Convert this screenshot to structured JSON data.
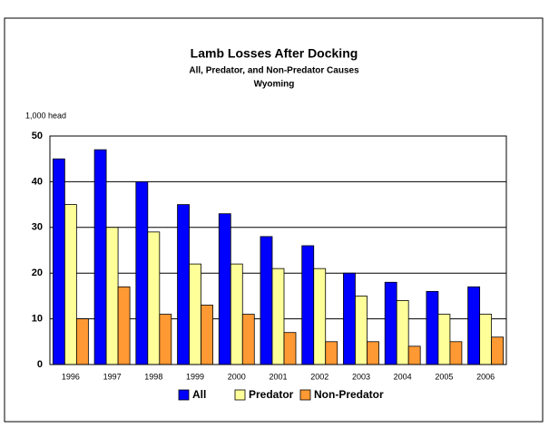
{
  "chart_data": {
    "type": "bar",
    "title": "Lamb Losses After Docking",
    "subtitles": [
      "All, Predator, and Non-Predator Causes",
      "Wyoming"
    ],
    "ylabel": "1,000 head",
    "categories": [
      "1996",
      "1997",
      "1998",
      "1999",
      "2000",
      "2001",
      "2002",
      "2003",
      "2004",
      "2005",
      "2006"
    ],
    "series": [
      {
        "name": "All",
        "color": "#0000ff",
        "values": [
          45,
          47,
          40,
          35,
          33,
          28,
          26,
          20,
          18,
          16,
          17
        ]
      },
      {
        "name": "Predator",
        "color": "#ffff99",
        "values": [
          35,
          30,
          29,
          22,
          22,
          21,
          21,
          15,
          14,
          11,
          11
        ]
      },
      {
        "name": "Non-Predator",
        "color": "#ff9933",
        "values": [
          10,
          17,
          11,
          13,
          11,
          7,
          5,
          5,
          4,
          5,
          6
        ]
      }
    ],
    "ylim": [
      0,
      50
    ],
    "yticks": [
      0,
      10,
      20,
      30,
      40,
      50
    ],
    "grid": true,
    "legend": "bottom"
  }
}
